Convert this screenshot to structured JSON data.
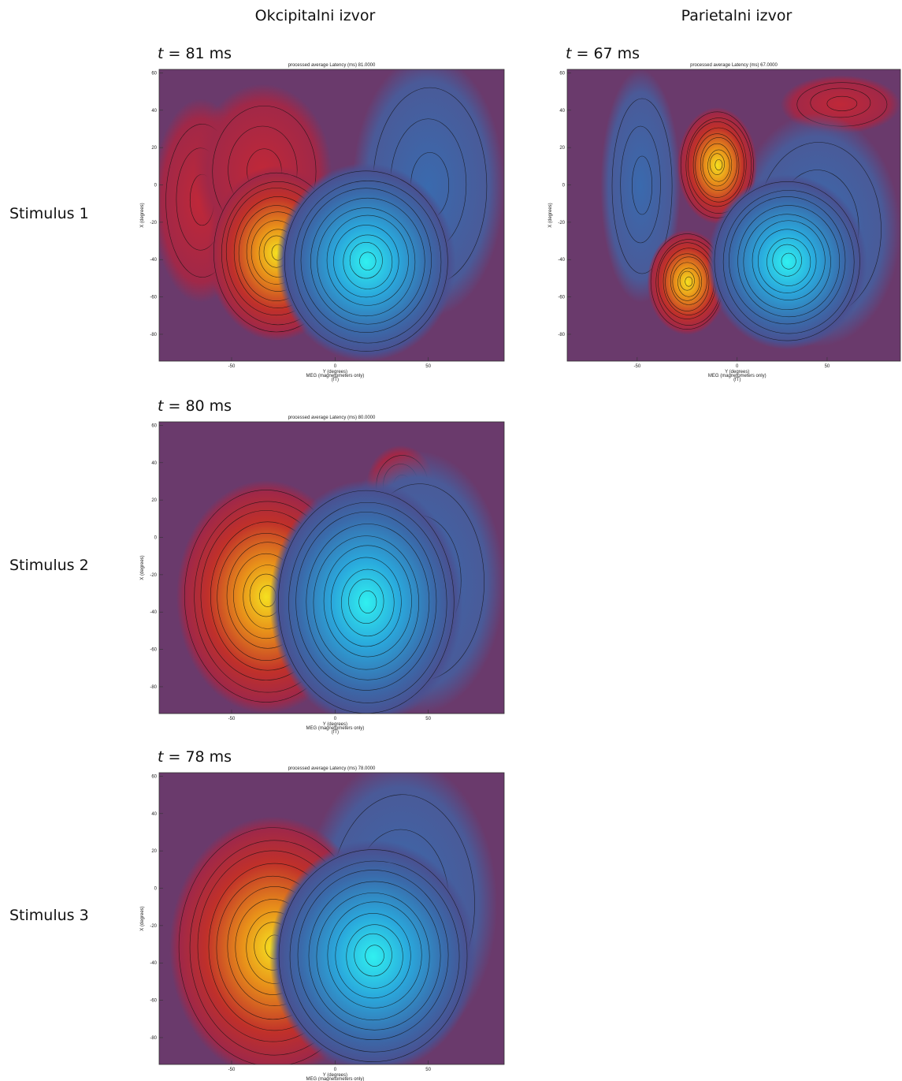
{
  "columns": [
    "Okcipitalni izvor",
    "Parietalni izvor"
  ],
  "rows": [
    "Stimulus 1",
    "Stimulus 2",
    "Stimulus 3"
  ],
  "axes": {
    "ylabel": "X (degrees)",
    "xlabel": [
      "Y (degrees)",
      "MEG (magnetometers only)",
      "(fT)"
    ],
    "yticks": [
      "60",
      "40",
      "20",
      "0",
      "-20",
      "-40",
      "-60",
      "-80"
    ],
    "xticks": [
      "-50",
      "0",
      "50"
    ]
  },
  "panels": [
    {
      "time": {
        "var": "t",
        "rest": " = 81 ms"
      },
      "title": "processed average Latency (ms) 81.0000"
    },
    {
      "time": {
        "var": "t",
        "rest": " = 67 ms"
      },
      "title": "processed average Latency (ms) 67.0000"
    },
    {
      "time": {
        "var": "t",
        "rest": " = 80 ms"
      },
      "title": "processed average Latency (ms) 80.0000"
    },
    {
      "time": {
        "var": "t",
        "rest": " = 78 ms"
      },
      "title": "processed average Latency (ms) 78.0000"
    }
  ]
}
